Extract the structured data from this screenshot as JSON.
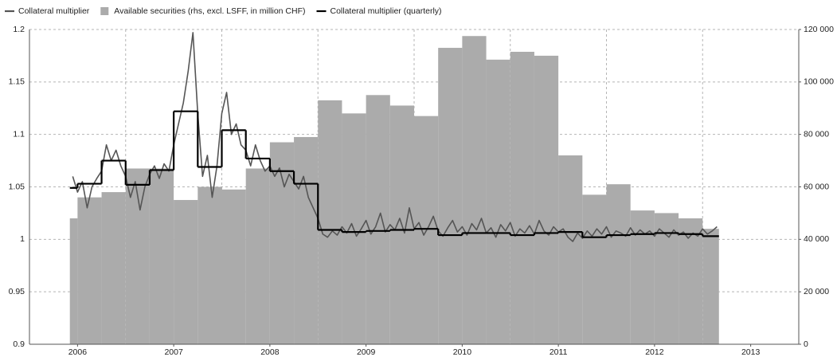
{
  "chart_data": {
    "type": "combo",
    "xlim": [
      2005.5,
      2013.5
    ],
    "xticks": [
      2006,
      2007,
      2008,
      2009,
      2010,
      2011,
      2012,
      2013
    ],
    "xgrid": [
      2006.5,
      2007.5,
      2008.5,
      2009.5,
      2010.5,
      2011.5,
      2012.5
    ],
    "ylim": [
      0.9,
      1.2
    ],
    "yticks": [
      0.9,
      0.95,
      1,
      1.05,
      1.1,
      1.15,
      1.2
    ],
    "y2lim": [
      0,
      120000
    ],
    "y2ticks": [
      0,
      {
        "value": 20000,
        "label": "20 000"
      },
      {
        "value": 40000,
        "label": "40 000"
      },
      {
        "value": 60000,
        "label": "60 000"
      },
      {
        "value": 80000,
        "label": "80 000"
      },
      {
        "value": 100000,
        "label": "100 000"
      },
      {
        "value": 120000,
        "label": "120 000"
      }
    ],
    "grid": true,
    "series": [
      {
        "name": "Collateral multiplier",
        "type": "line",
        "color": "#555555",
        "x": [
          2005.95,
          2006.0,
          2006.05,
          2006.1,
          2006.15,
          2006.2,
          2006.25,
          2006.3,
          2006.35,
          2006.4,
          2006.45,
          2006.5,
          2006.55,
          2006.6,
          2006.65,
          2006.7,
          2006.75,
          2006.8,
          2006.85,
          2006.9,
          2006.95,
          2007.0,
          2007.05,
          2007.1,
          2007.15,
          2007.2,
          2007.25,
          2007.3,
          2007.35,
          2007.4,
          2007.45,
          2007.5,
          2007.55,
          2007.6,
          2007.65,
          2007.7,
          2007.75,
          2007.8,
          2007.85,
          2007.9,
          2007.95,
          2008.0,
          2008.05,
          2008.1,
          2008.15,
          2008.2,
          2008.25,
          2008.3,
          2008.35,
          2008.4,
          2008.45,
          2008.5,
          2008.55,
          2008.6,
          2008.65,
          2008.7,
          2008.75,
          2008.8,
          2008.85,
          2008.9,
          2008.95,
          2009.0,
          2009.05,
          2009.1,
          2009.15,
          2009.2,
          2009.25,
          2009.3,
          2009.35,
          2009.4,
          2009.45,
          2009.5,
          2009.55,
          2009.6,
          2009.65,
          2009.7,
          2009.75,
          2009.8,
          2009.85,
          2009.9,
          2009.95,
          2010.0,
          2010.05,
          2010.1,
          2010.15,
          2010.2,
          2010.25,
          2010.3,
          2010.35,
          2010.4,
          2010.45,
          2010.5,
          2010.55,
          2010.6,
          2010.65,
          2010.7,
          2010.75,
          2010.8,
          2010.85,
          2010.9,
          2010.95,
          2011.0,
          2011.05,
          2011.1,
          2011.15,
          2011.2,
          2011.25,
          2011.3,
          2011.35,
          2011.4,
          2011.45,
          2011.5,
          2011.55,
          2011.6,
          2011.65,
          2011.7,
          2011.75,
          2011.8,
          2011.85,
          2011.9,
          2011.95,
          2012.0,
          2012.05,
          2012.1,
          2012.15,
          2012.2,
          2012.25,
          2012.3,
          2012.35,
          2012.4,
          2012.45,
          2012.5,
          2012.55,
          2012.6,
          2012.65
        ],
        "values": [
          1.06,
          1.045,
          1.055,
          1.03,
          1.05,
          1.058,
          1.065,
          1.09,
          1.075,
          1.085,
          1.07,
          1.06,
          1.04,
          1.055,
          1.028,
          1.05,
          1.062,
          1.07,
          1.058,
          1.072,
          1.065,
          1.09,
          1.11,
          1.13,
          1.16,
          1.197,
          1.12,
          1.06,
          1.08,
          1.04,
          1.07,
          1.12,
          1.14,
          1.1,
          1.11,
          1.09,
          1.085,
          1.07,
          1.09,
          1.075,
          1.065,
          1.07,
          1.06,
          1.068,
          1.05,
          1.062,
          1.055,
          1.048,
          1.06,
          1.04,
          1.03,
          1.02,
          1.005,
          1.002,
          1.008,
          1.004,
          1.012,
          1.006,
          1.015,
          1.003,
          1.01,
          1.018,
          1.005,
          1.012,
          1.025,
          1.007,
          1.014,
          1.009,
          1.02,
          1.006,
          1.03,
          1.01,
          1.016,
          1.004,
          1.012,
          1.022,
          1.008,
          1.003,
          1.011,
          1.018,
          1.007,
          1.012,
          1.004,
          1.015,
          1.009,
          1.02,
          1.006,
          1.011,
          1.002,
          1.014,
          1.008,
          1.016,
          1.003,
          1.01,
          1.006,
          1.013,
          1.005,
          1.018,
          1.008,
          1.004,
          1.012,
          1.007,
          1.01,
          1.002,
          0.998,
          1.006,
          1.001,
          1.008,
          1.003,
          1.01,
          1.005,
          1.012,
          1.002,
          1.008,
          1.006,
          1.003,
          1.011,
          1.004,
          1.009,
          1.005,
          1.008,
          1.003,
          1.01,
          1.006,
          1.002,
          1.009,
          1.004,
          1.007,
          1.001,
          1.006,
          1.003,
          1.01,
          1.005,
          1.008,
          1.012
        ]
      },
      {
        "name": "Available securities (rhs, excl. LSFF, in million CHF)",
        "type": "bar",
        "axis": "y2",
        "color": "#ababab",
        "bins": [
          2005.92,
          2006,
          2006.25,
          2006.5,
          2006.75,
          2007,
          2007.25,
          2007.5,
          2007.75,
          2008,
          2008.25,
          2008.5,
          2008.75,
          2009,
          2009.25,
          2009.5,
          2009.75,
          2010,
          2010.25,
          2010.5,
          2010.75,
          2011,
          2011.25,
          2011.5,
          2011.75,
          2012,
          2012.25,
          2012.5,
          2012.67
        ],
        "values": [
          48000,
          56000,
          58000,
          67000,
          67000,
          55000,
          60000,
          59000,
          67000,
          77000,
          79000,
          93000,
          88000,
          95000,
          91000,
          87000,
          113000,
          117500,
          108500,
          111500,
          110000,
          72000,
          57000,
          61000,
          51000,
          50000,
          48000,
          44000
        ]
      },
      {
        "name": "Collateral multiplier (quarterly)",
        "type": "step",
        "color": "#000000",
        "bins": [
          2005.92,
          2006,
          2006.25,
          2006.5,
          2006.75,
          2007,
          2007.25,
          2007.5,
          2007.75,
          2008,
          2008.25,
          2008.5,
          2008.75,
          2009,
          2009.25,
          2009.5,
          2009.75,
          2010,
          2010.25,
          2010.5,
          2010.75,
          2011,
          2011.25,
          2011.5,
          2011.75,
          2012,
          2012.25,
          2012.5,
          2012.67
        ],
        "values": [
          1.049,
          1.053,
          1.075,
          1.052,
          1.066,
          1.122,
          1.069,
          1.104,
          1.077,
          1.065,
          1.053,
          1.009,
          1.007,
          1.008,
          1.009,
          1.01,
          1.004,
          1.006,
          1.006,
          1.004,
          1.006,
          1.007,
          1.002,
          1.004,
          1.005,
          1.006,
          1.005,
          1.003
        ]
      }
    ]
  }
}
